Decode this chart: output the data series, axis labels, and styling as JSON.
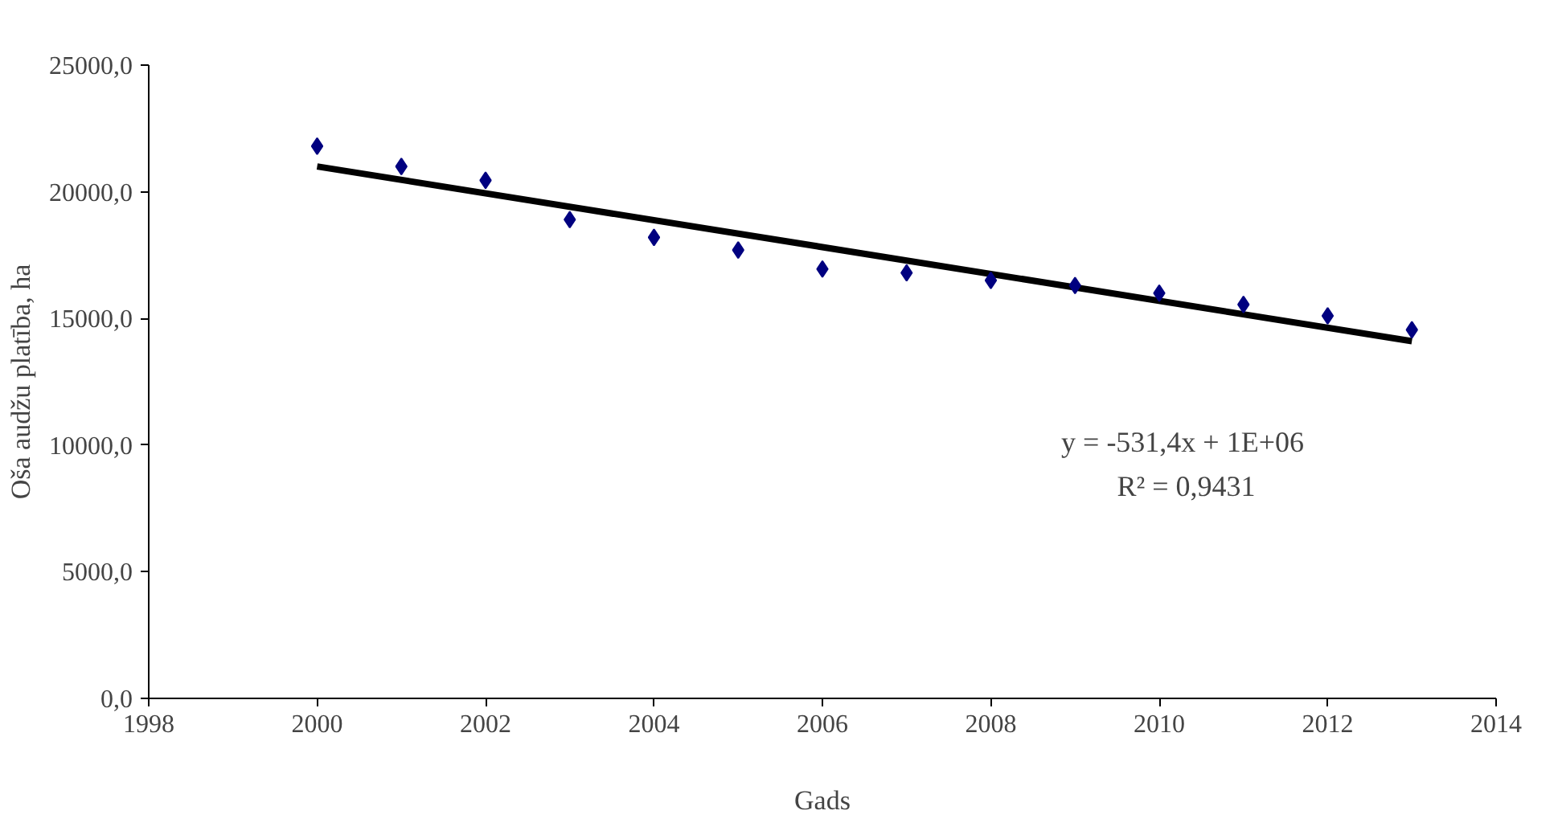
{
  "chart_data": {
    "type": "scatter",
    "xlabel": "Gads",
    "ylabel": "Oša audžu platība, ha",
    "xlim": [
      1998,
      2014
    ],
    "xticks": [
      1998,
      2000,
      2002,
      2004,
      2006,
      2008,
      2010,
      2012,
      2014
    ],
    "ylim": [
      0,
      25000
    ],
    "yticks": [
      {
        "value": 0,
        "label": "0,0"
      },
      {
        "value": 5000,
        "label": "5000,0"
      },
      {
        "value": 10000,
        "label": "10000,0"
      },
      {
        "value": 15000,
        "label": "15000,0"
      },
      {
        "value": 20000,
        "label": "20000,0"
      },
      {
        "value": 25000,
        "label": "25000,0"
      }
    ],
    "grid": false,
    "series": [
      {
        "type": "line",
        "color": "#000000",
        "line_style": "solid",
        "x": [
          2000,
          2013
        ],
        "values": [
          21000,
          14100
        ]
      },
      {
        "marker": "diamond",
        "color": "#000080",
        "x": [
          2000,
          2001,
          2002,
          2003,
          2004,
          2005,
          2006,
          2007,
          2008,
          2009,
          2010,
          2011,
          2012,
          2013
        ],
        "values": [
          21800,
          21000,
          20450,
          18900,
          18200,
          17700,
          16950,
          16800,
          16500,
          16300,
          16000,
          15550,
          15100,
          14550
        ]
      }
    ],
    "annotations": [
      "y = -531,4x  + 1E+06",
      "R² = 0,9431"
    ]
  }
}
